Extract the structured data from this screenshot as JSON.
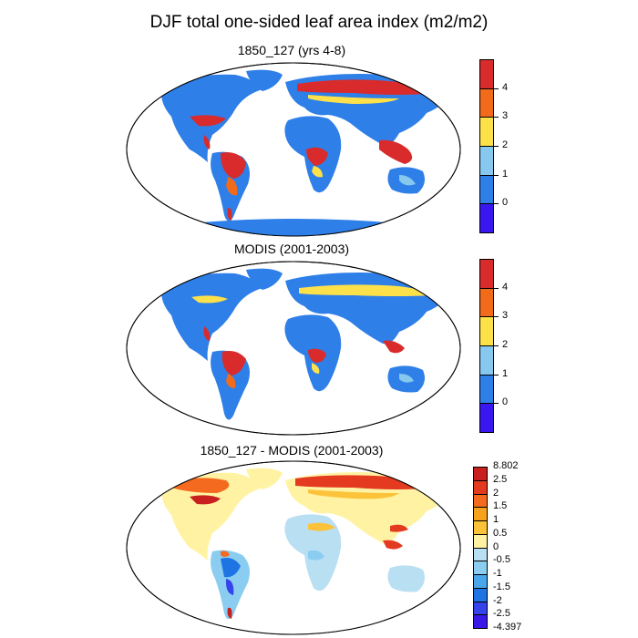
{
  "title": "DJF total one-sided leaf area index (m2/m2)",
  "panels": [
    {
      "title": "1850_127 (yrs 4-8)",
      "colorbar": {
        "labels": [
          "4",
          "3",
          "2",
          "1",
          "0"
        ],
        "colors": [
          "#d92b2b",
          "#f26b1b",
          "#fde14a",
          "#86c8ee",
          "#2f7fe8",
          "#3a17f0"
        ]
      }
    },
    {
      "title": "MODIS (2001-2003)",
      "colorbar": {
        "labels": [
          "4",
          "3",
          "2",
          "1",
          "0"
        ],
        "colors": [
          "#d92b2b",
          "#f26b1b",
          "#fde14a",
          "#86c8ee",
          "#2f7fe8",
          "#3a17f0"
        ]
      }
    },
    {
      "title": "1850_127 - MODIS (2001-2003)",
      "colorbar": {
        "labels": [
          "8.802",
          "2.5",
          "2",
          "1.5",
          "1",
          "0.5",
          "0",
          "-0.5",
          "-1",
          "-1.5",
          "-2",
          "-2.5",
          "-4.397"
        ],
        "colors": [
          "#c8201f",
          "#e43a1f",
          "#f46a1f",
          "#f7a21e",
          "#fcc33a",
          "#fff3a3",
          "#b9dff3",
          "#8acdf0",
          "#49a6ea",
          "#1f74e3",
          "#3443ea",
          "#3a17e6"
        ]
      }
    }
  ]
}
